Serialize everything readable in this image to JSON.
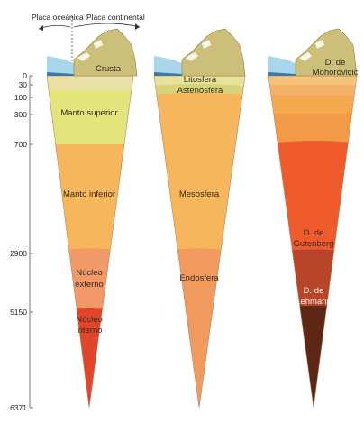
{
  "plate_labels": {
    "oceanic": "Placa oceánica",
    "continental": "Placa continental"
  },
  "depths": [
    {
      "value": "0",
      "km": 0
    },
    {
      "value": "30",
      "km": 30
    },
    {
      "value": "100",
      "km": 100
    },
    {
      "value": "300",
      "km": 300
    },
    {
      "value": "700",
      "km": 700
    },
    {
      "value": "2900",
      "km": 2900
    },
    {
      "value": "5150",
      "km": 5150
    },
    {
      "value": "6371",
      "km": 6371
    }
  ],
  "wedge1": {
    "labels": {
      "crust": "Crusta",
      "upper_mantle": "Manto superior",
      "lower_mantle": "Manto inferior",
      "outer_core_1": "Núcleo",
      "outer_core_2": "externo",
      "inner_core_1": "Núcleo",
      "inner_core_2": "interno"
    }
  },
  "wedge2": {
    "labels": {
      "lithosphere": "Litosfera",
      "asthenosphere": "Astenosfera",
      "mesosphere": "Mesosfera",
      "endosphere": "Endosfera"
    }
  },
  "wedge3": {
    "labels": {
      "moho_1": "D. de",
      "moho_2": "Mohorovicic",
      "gutenberg_1": "D. de",
      "gutenberg_2": "Gutenberg",
      "lehmann_1": "D. de",
      "lehmann_2": "Lehmann"
    }
  }
}
